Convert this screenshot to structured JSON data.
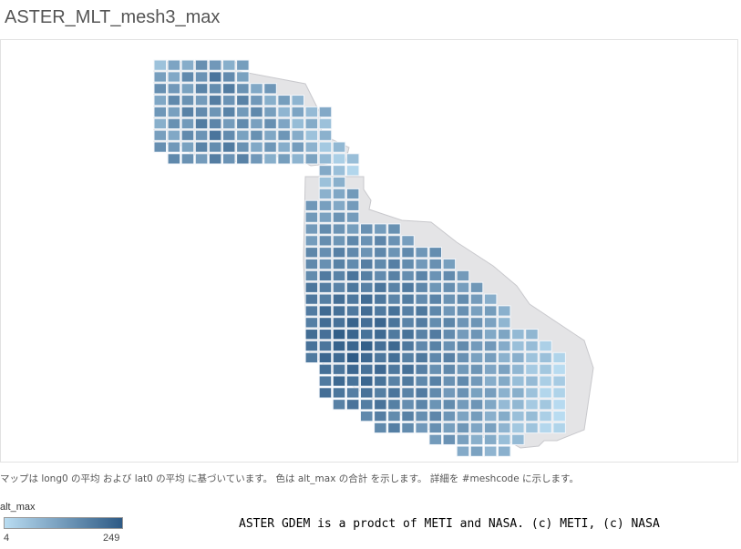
{
  "title": "ASTER_MLT_mesh3_max",
  "caption": "マップは long0 の平均 および lat0 の平均 に基づいています。 色は alt_max の合計 を示します。 詳細を #meshcode に示します。",
  "legend": {
    "title": "alt_max",
    "min": "4",
    "max": "249",
    "color_low": "#b9dcf1",
    "color_high": "#2e5a85"
  },
  "credit": "ASTER GDEM is a prodct of METI and NASA. (c) METI, (c) NASA",
  "colors": {
    "land": "#e4e4e6",
    "land_outline": "#c8c8cc",
    "cell_border": "#f2f6fa"
  }
}
